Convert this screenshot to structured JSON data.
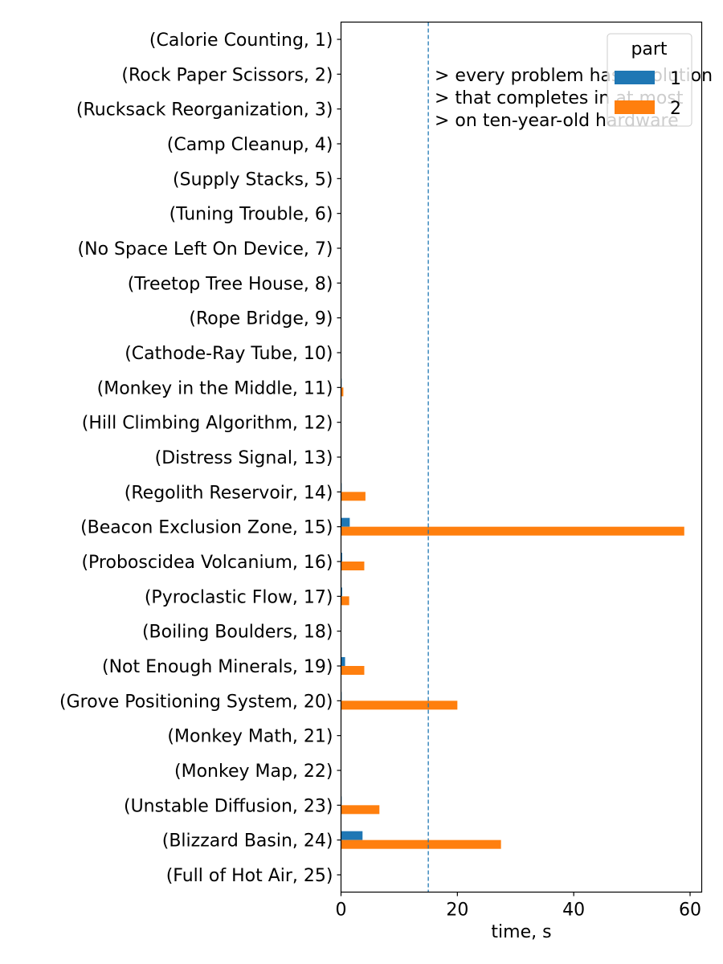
{
  "chart_data": {
    "type": "bar",
    "orientation": "horizontal",
    "categories": [
      "(Calorie Counting, 1)",
      "(Rock Paper Scissors, 2)",
      "(Rucksack Reorganization, 3)",
      "(Camp Cleanup, 4)",
      "(Supply Stacks, 5)",
      "(Tuning Trouble, 6)",
      "(No Space Left On Device, 7)",
      "(Treetop Tree House, 8)",
      "(Rope Bridge, 9)",
      "(Cathode-Ray Tube, 10)",
      "(Monkey in the Middle, 11)",
      "(Hill Climbing Algorithm, 12)",
      "(Distress Signal, 13)",
      "(Regolith Reservoir, 14)",
      "(Beacon Exclusion Zone, 15)",
      "(Proboscidea Volcanium, 16)",
      "(Pyroclastic Flow, 17)",
      "(Boiling Boulders, 18)",
      "(Not Enough Minerals, 19)",
      "(Grove Positioning System, 20)",
      "(Monkey Math, 21)",
      "(Monkey Map, 22)",
      "(Unstable Diffusion, 23)",
      "(Blizzard Basin, 24)",
      "(Full of Hot Air, 25)"
    ],
    "series": [
      {
        "name": "1",
        "color": "#1f77b4",
        "values": [
          0,
          0,
          0,
          0,
          0,
          0,
          0,
          0,
          0,
          0,
          0.05,
          0,
          0,
          0.1,
          1.5,
          0.2,
          0.2,
          0,
          0.7,
          0.1,
          0,
          0,
          0.05,
          3.7,
          0
        ]
      },
      {
        "name": "2",
        "color": "#ff7f0e",
        "values": [
          0,
          0,
          0,
          0,
          0,
          0,
          0,
          0,
          0,
          0,
          0.4,
          0,
          0,
          4.2,
          59.0,
          4.0,
          1.4,
          0,
          4.0,
          20.0,
          0,
          0,
          6.6,
          27.5,
          0
        ]
      }
    ],
    "xlabel": "time, s",
    "ylabel": "",
    "xlim": [
      0,
      62
    ],
    "xticks": [
      "0",
      "20",
      "40",
      "60"
    ],
    "grid": false,
    "reference_line": {
      "value": 15,
      "color": "#1f77b4",
      "style": "dashed"
    },
    "annotation": [
      "> every problem has a solution",
      "> that completes in at most",
      "> on ten-year-old hardware"
    ],
    "legend": {
      "title": "part",
      "placement": "upper right",
      "labels": [
        "1",
        "2"
      ]
    }
  }
}
